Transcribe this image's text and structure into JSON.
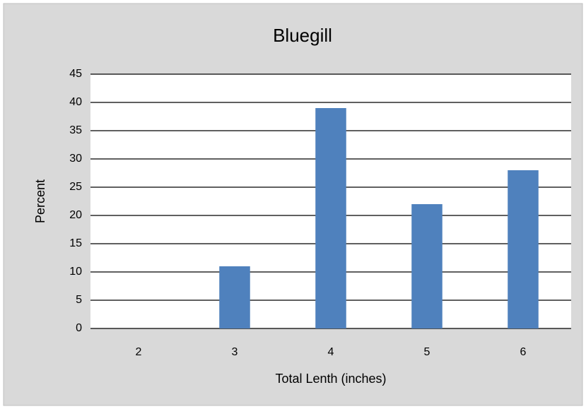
{
  "chart_data": {
    "type": "bar",
    "title": "Bluegill",
    "x_label": "Total Lenth (inches)",
    "y_label": "Percent",
    "categories": [
      "2",
      "3",
      "4",
      "5",
      "6"
    ],
    "values": [
      0,
      11,
      39,
      22,
      28
    ],
    "color": "#4f81bd",
    "ylim": [
      0,
      45
    ],
    "yticks": [
      0,
      5,
      10,
      15,
      20,
      25,
      30,
      35,
      40,
      45
    ],
    "grid": true
  }
}
